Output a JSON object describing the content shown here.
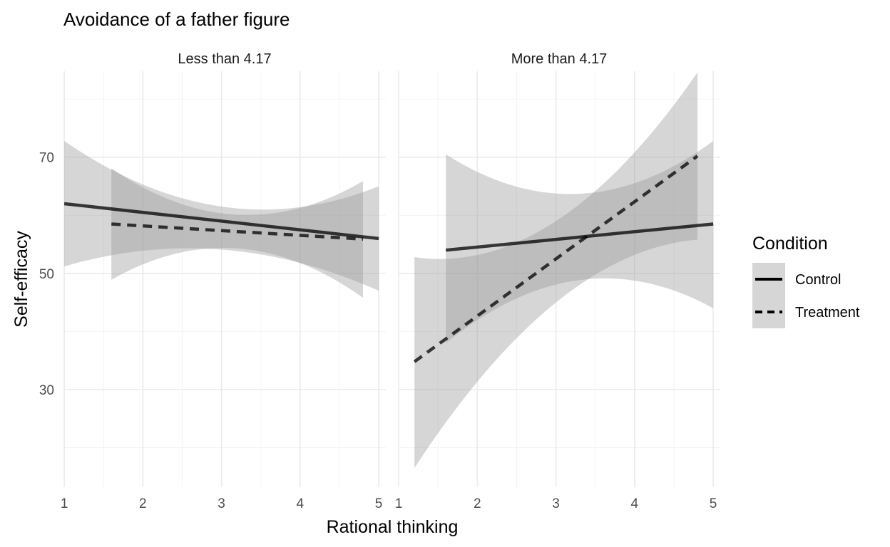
{
  "chart_data": {
    "type": "line",
    "title": "Avoidance of a father figure",
    "xlabel": "Rational thinking",
    "ylabel": "Self-efficacy",
    "xlim": [
      0.99,
      5.09
    ],
    "ylim": [
      13.2,
      84.8
    ],
    "x_ticks": [
      1,
      2,
      3,
      4,
      5
    ],
    "x_tick_labels": [
      "1",
      "2",
      "3",
      "4",
      "5"
    ],
    "y_ticks": [
      30,
      50,
      70
    ],
    "y_tick_labels": [
      "30",
      "50",
      "70"
    ],
    "grid": true,
    "legend": {
      "title": "Condition",
      "position": "right",
      "entries": [
        {
          "label": "Control",
          "linetype": "solid"
        },
        {
          "label": "Treatment",
          "linetype": "dashed"
        }
      ]
    },
    "colors": {
      "line": "#000000",
      "ribbon": "#999999",
      "grid": "#ebebeb",
      "text": "#4d4d4d"
    },
    "facets": [
      {
        "label": "Less than 4.17",
        "series": [
          {
            "name": "Control",
            "linetype": "solid",
            "x": [
              1.0,
              5.0
            ],
            "y": [
              62.0,
              56.0
            ],
            "ci_x": [
              1.0,
              3.0,
              5.0
            ],
            "ci_lower": [
              51.2,
              54.1,
              47.0
            ],
            "ci_upper": [
              72.8,
              61.5,
              65.0
            ]
          },
          {
            "name": "Treatment",
            "linetype": "dashed",
            "x": [
              1.6,
              4.8
            ],
            "y": [
              58.5,
              55.9
            ],
            "ci_x": [
              1.6,
              3.2,
              4.8
            ],
            "ci_lower": [
              48.9,
              54.3,
              45.8
            ],
            "ci_upper": [
              68.1,
              60.1,
              65.9
            ]
          }
        ]
      },
      {
        "label": "More than 4.17",
        "series": [
          {
            "name": "Control",
            "linetype": "solid",
            "x": [
              1.6,
              5.0
            ],
            "y": [
              54.0,
              58.5
            ],
            "ci_x": [
              1.6,
              3.4,
              5.0
            ],
            "ci_lower": [
              38.0,
              49.0,
              44.0
            ],
            "ci_upper": [
              70.5,
              63.8,
              72.8
            ]
          },
          {
            "name": "Treatment",
            "linetype": "dashed",
            "x": [
              1.2,
              4.8
            ],
            "y": [
              34.8,
              70.2
            ],
            "ci_x": [
              1.2,
              3.0,
              4.8
            ],
            "ci_lower": [
              16.5,
              45.0,
              55.8
            ],
            "ci_upper": [
              52.8,
              59.0,
              84.6
            ]
          }
        ]
      }
    ]
  }
}
